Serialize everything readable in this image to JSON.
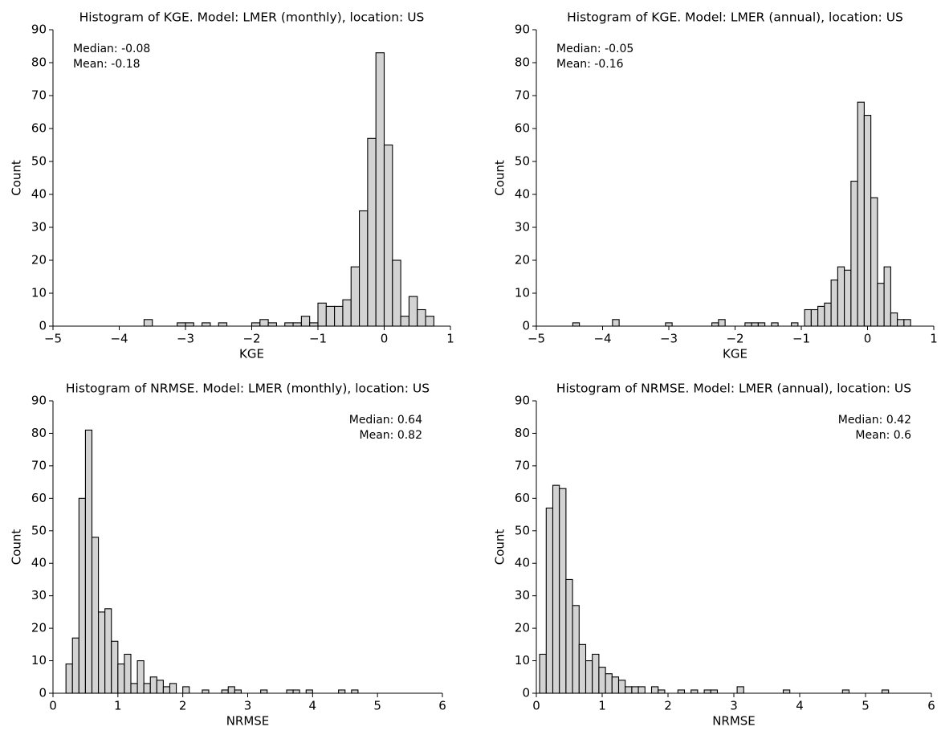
{
  "chart_data": [
    {
      "type": "histogram",
      "title": "Histogram of KGE. Model: LMER (monthly), location: US",
      "xlabel": "KGE",
      "ylabel": "Count",
      "annotations": [
        "Median: -0.08",
        "Mean: -0.18"
      ],
      "annotation_position": "upper left",
      "color": "#d3d3d3",
      "edgecolor": "#000000",
      "bins": [
        -3.625,
        -3.5,
        -3.375,
        -3.25,
        -3.125,
        -3,
        -2.875,
        -2.75,
        -2.625,
        -2.5,
        -2.375,
        -2.25,
        -2.125,
        -2,
        -1.875,
        -1.75,
        -1.625,
        -1.5,
        -1.375,
        -1.25,
        -1.125,
        -1,
        -0.875,
        -0.75,
        -0.625,
        -0.5,
        -0.375,
        -0.25,
        -0.125,
        0,
        0.125,
        0.25,
        0.375,
        0.5,
        0.625,
        0.75
      ],
      "values": [
        2,
        0,
        0,
        0,
        1,
        1,
        0,
        1,
        0,
        1,
        0,
        0,
        0,
        1,
        2,
        1,
        0,
        1,
        1,
        3,
        1,
        7,
        6,
        6,
        8,
        18,
        35,
        57,
        83,
        55,
        20,
        3,
        9,
        5,
        3
      ],
      "xlim": [
        -5,
        1
      ],
      "xticks": [
        {
          "value": -5,
          "label": "−5"
        },
        {
          "value": -4,
          "label": "−4"
        },
        {
          "value": -3,
          "label": "−3"
        },
        {
          "value": -2,
          "label": "−2"
        },
        {
          "value": -1,
          "label": "−1"
        },
        0,
        1
      ],
      "ylim": [
        0,
        90
      ],
      "yticks": [
        0,
        10,
        20,
        30,
        40,
        50,
        60,
        70,
        80,
        90
      ]
    },
    {
      "type": "histogram",
      "title": "Histogram of KGE. Model: LMER (annual), location: US",
      "xlabel": "KGE",
      "ylabel": "Count",
      "annotations": [
        "Median: -0.05",
        "Mean: -0.16"
      ],
      "annotation_position": "upper left",
      "color": "#d3d3d3",
      "edgecolor": "#000000",
      "bins": [
        -4.45,
        -4.35,
        -4.25,
        -4.15,
        -4.05,
        -3.95,
        -3.85,
        -3.75,
        -3.65,
        -3.55,
        -3.45,
        -3.35,
        -3.25,
        -3.15,
        -3.05,
        -2.95,
        -2.85,
        -2.75,
        -2.65,
        -2.55,
        -2.45,
        -2.35,
        -2.25,
        -2.15,
        -2.05,
        -1.95,
        -1.85,
        -1.75,
        -1.65,
        -1.55,
        -1.45,
        -1.35,
        -1.25,
        -1.15,
        -1.05,
        -0.95,
        -0.85,
        -0.75,
        -0.65,
        -0.55,
        -0.45,
        -0.35,
        -0.25,
        -0.15,
        -0.05,
        0.05,
        0.15,
        0.25,
        0.35,
        0.45,
        0.55,
        0.65
      ],
      "values": [
        1,
        0,
        0,
        0,
        0,
        0,
        2,
        0,
        0,
        0,
        0,
        0,
        0,
        0,
        1,
        0,
        0,
        0,
        0,
        0,
        0,
        1,
        2,
        0,
        0,
        0,
        1,
        1,
        1,
        0,
        1,
        0,
        0,
        1,
        0,
        5,
        5,
        6,
        7,
        14,
        18,
        17,
        44,
        68,
        64,
        39,
        13,
        18,
        4,
        2,
        2
      ],
      "xlim": [
        -5,
        1
      ],
      "xticks": [
        {
          "value": -5,
          "label": "−5"
        },
        {
          "value": -4,
          "label": "−4"
        },
        {
          "value": -3,
          "label": "−3"
        },
        {
          "value": -2,
          "label": "−2"
        },
        {
          "value": -1,
          "label": "−1"
        },
        0,
        1
      ],
      "ylim": [
        0,
        90
      ],
      "yticks": [
        0,
        10,
        20,
        30,
        40,
        50,
        60,
        70,
        80,
        90
      ]
    },
    {
      "type": "histogram",
      "title": "Histogram of NRMSE. Model: LMER (monthly), location: US",
      "xlabel": "NRMSE",
      "ylabel": "Count",
      "annotations": [
        "Median: 0.64",
        "Mean: 0.82"
      ],
      "annotation_position": "upper right",
      "color": "#d3d3d3",
      "edgecolor": "#000000",
      "bins": [
        0.2,
        0.3,
        0.4,
        0.5,
        0.6,
        0.7,
        0.8,
        0.9,
        1.0,
        1.1,
        1.2,
        1.3,
        1.4,
        1.5,
        1.6,
        1.7,
        1.8,
        1.9,
        2.0,
        2.1,
        2.2,
        2.3,
        2.4,
        2.5,
        2.6,
        2.7,
        2.8,
        2.9,
        3.0,
        3.1,
        3.2,
        3.3,
        3.4,
        3.5,
        3.6,
        3.7,
        3.8,
        3.9,
        4.0,
        4.1,
        4.2,
        4.3,
        4.4,
        4.5,
        4.6,
        4.7
      ],
      "values": [
        9,
        17,
        60,
        81,
        48,
        25,
        26,
        16,
        9,
        12,
        3,
        10,
        3,
        5,
        4,
        2,
        3,
        0,
        2,
        0,
        0,
        1,
        0,
        0,
        1,
        2,
        1,
        0,
        0,
        0,
        1,
        0,
        0,
        0,
        1,
        1,
        0,
        1,
        0,
        0,
        0,
        0,
        1,
        0,
        1
      ],
      "xlim": [
        0,
        6
      ],
      "xticks": [
        0,
        1,
        2,
        3,
        4,
        5,
        6
      ],
      "ylim": [
        0,
        90
      ],
      "yticks": [
        0,
        10,
        20,
        30,
        40,
        50,
        60,
        70,
        80,
        90
      ]
    },
    {
      "type": "histogram",
      "title": "Histogram of NRMSE. Model: LMER (annual), location: US",
      "xlabel": "NRMSE",
      "ylabel": "Count",
      "annotations": [
        "Median: 0.42",
        "Mean: 0.6"
      ],
      "annotation_position": "upper right",
      "color": "#d3d3d3",
      "edgecolor": "#000000",
      "bins": [
        0.05,
        0.15,
        0.25,
        0.35,
        0.45,
        0.55,
        0.65,
        0.75,
        0.85,
        0.95,
        1.05,
        1.15,
        1.25,
        1.35,
        1.45,
        1.55,
        1.65,
        1.75,
        1.85,
        1.95,
        2.05,
        2.15,
        2.25,
        2.35,
        2.45,
        2.55,
        2.65,
        2.75,
        2.85,
        2.95,
        3.05,
        3.15,
        3.25,
        3.35,
        3.45,
        3.55,
        3.65,
        3.75,
        3.85,
        3.95,
        4.05,
        4.15,
        4.25,
        4.35,
        4.45,
        4.55,
        4.65,
        4.75,
        4.85,
        4.95,
        5.05,
        5.15,
        5.25,
        5.35
      ],
      "values": [
        12,
        57,
        64,
        63,
        35,
        27,
        15,
        10,
        12,
        8,
        6,
        5,
        4,
        2,
        2,
        2,
        0,
        2,
        1,
        0,
        0,
        1,
        0,
        1,
        0,
        1,
        1,
        0,
        0,
        0,
        2,
        0,
        0,
        0,
        0,
        0,
        0,
        1,
        0,
        0,
        0,
        0,
        0,
        0,
        0,
        0,
        1,
        0,
        0,
        0,
        0,
        0,
        1
      ],
      "xlim": [
        0,
        6
      ],
      "xticks": [
        0,
        1,
        2,
        3,
        4,
        5,
        6
      ],
      "ylim": [
        0,
        90
      ],
      "yticks": [
        0,
        10,
        20,
        30,
        40,
        50,
        60,
        70,
        80,
        90
      ]
    }
  ]
}
